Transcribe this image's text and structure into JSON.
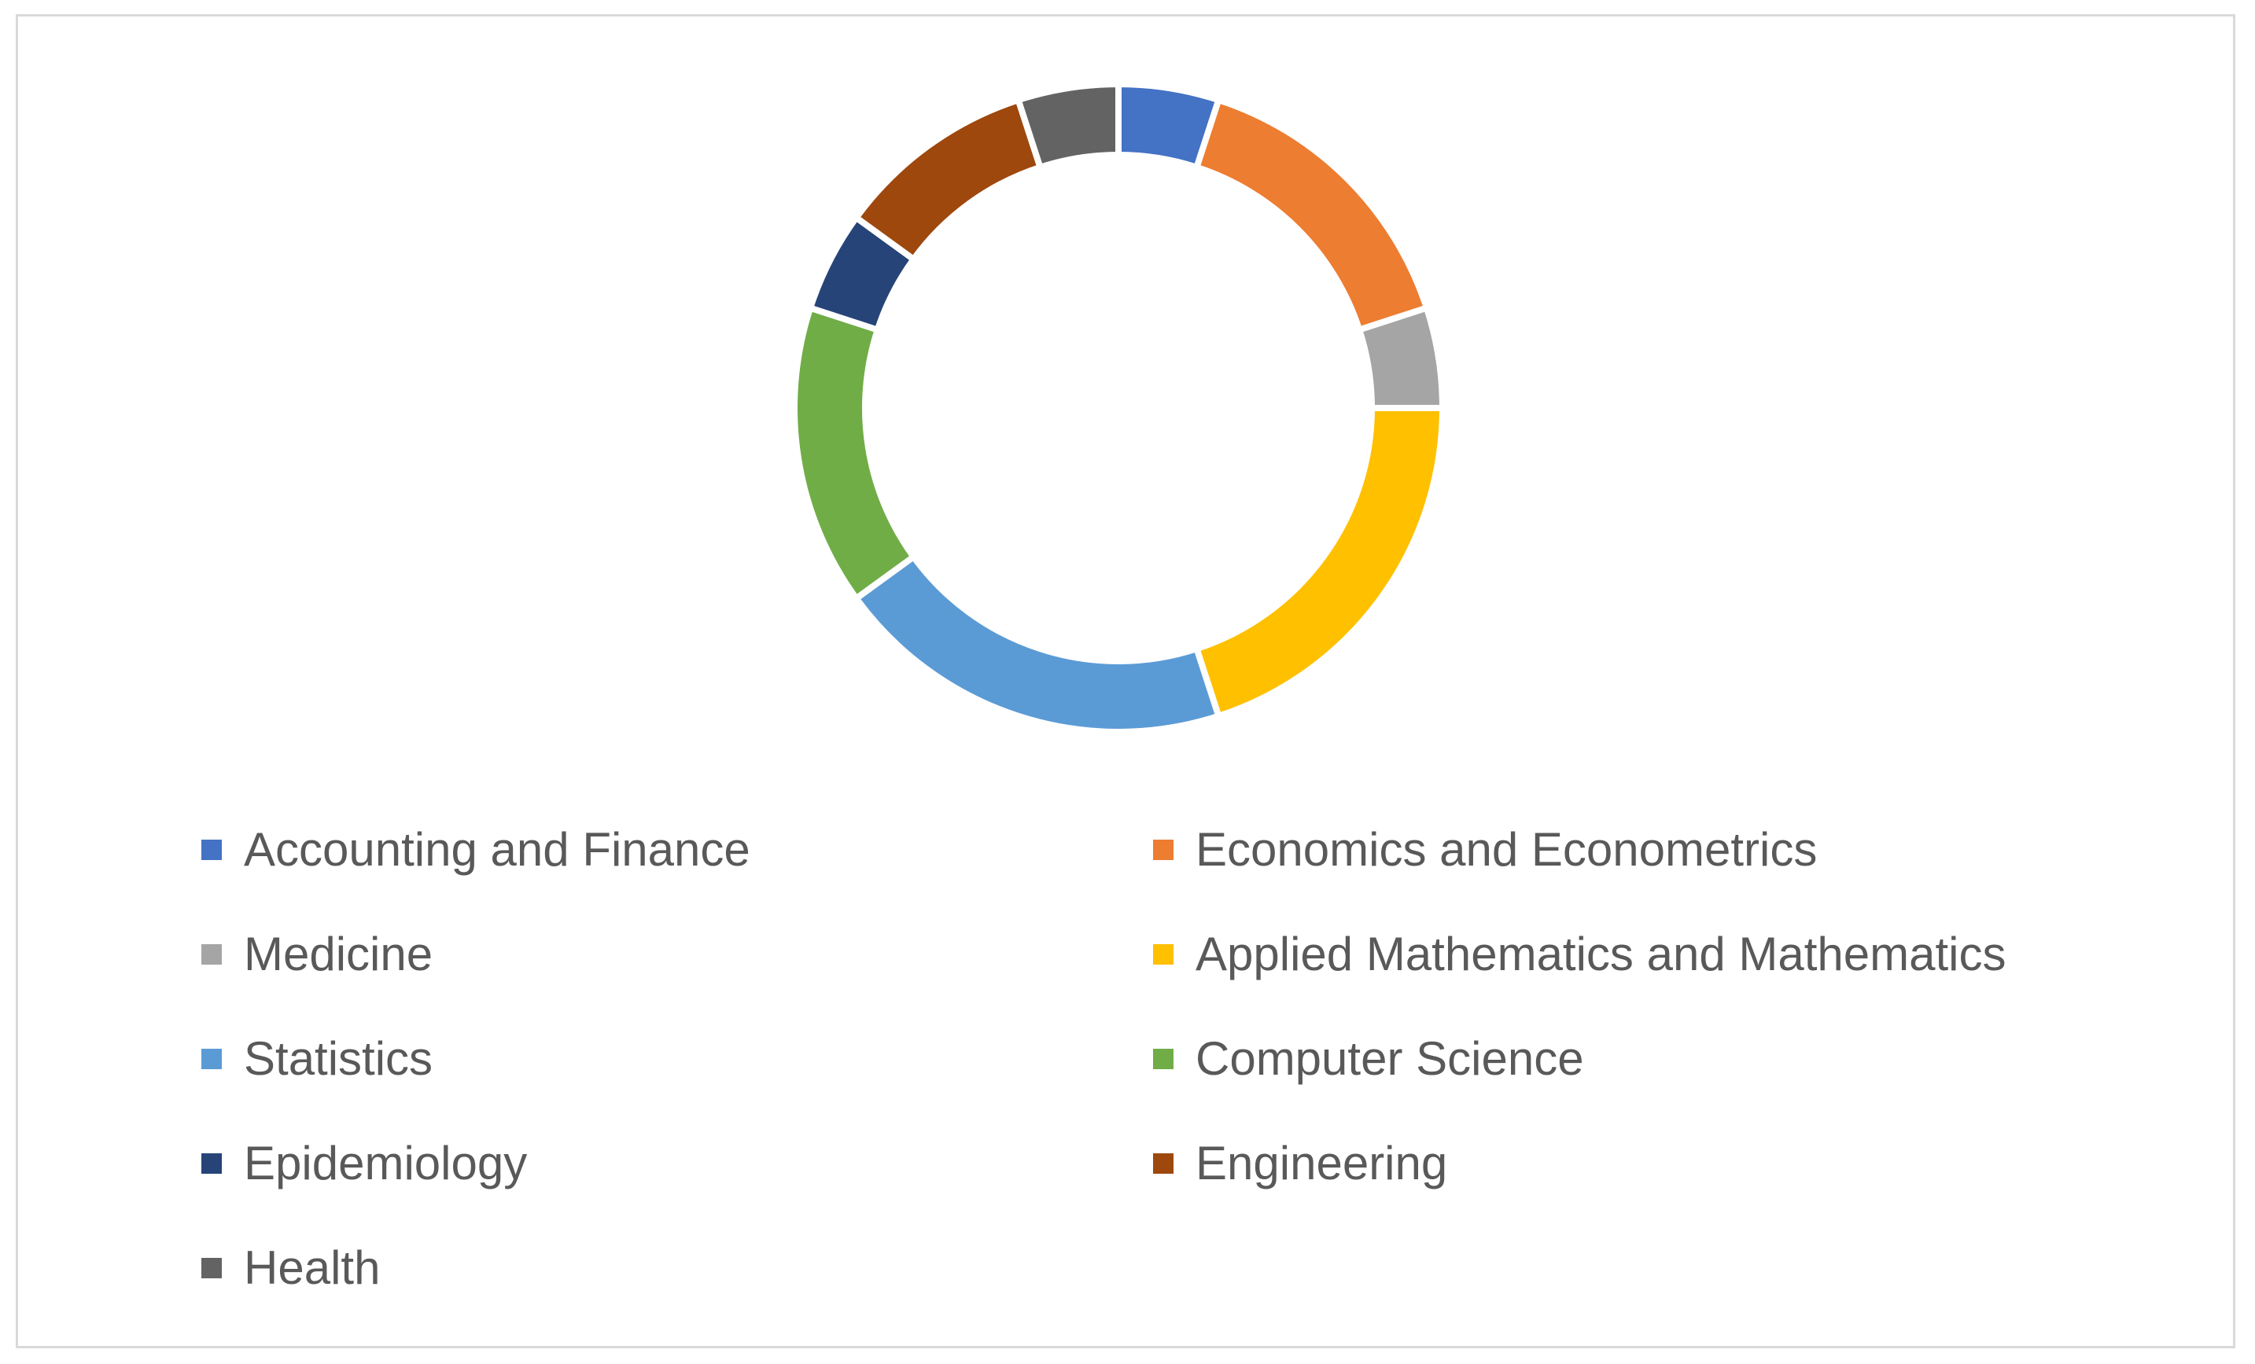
{
  "chart_data": {
    "type": "pie",
    "variant": "donut",
    "legend_placement": "bottom",
    "categories": [
      "Accounting and Finance",
      "Economics and Econometrics",
      "Medicine",
      "Applied Mathematics and Mathematics",
      "Statistics",
      "Computer Science",
      "Epidemiology",
      "Engineering",
      "Health"
    ],
    "values": [
      5,
      15,
      5,
      20,
      20,
      15,
      5,
      10,
      5
    ],
    "colors": [
      "#4472c4",
      "#ed7d31",
      "#a5a5a5",
      "#ffc000",
      "#5b9bd5",
      "#70ad47",
      "#264478",
      "#9e480e",
      "#636363"
    ]
  }
}
